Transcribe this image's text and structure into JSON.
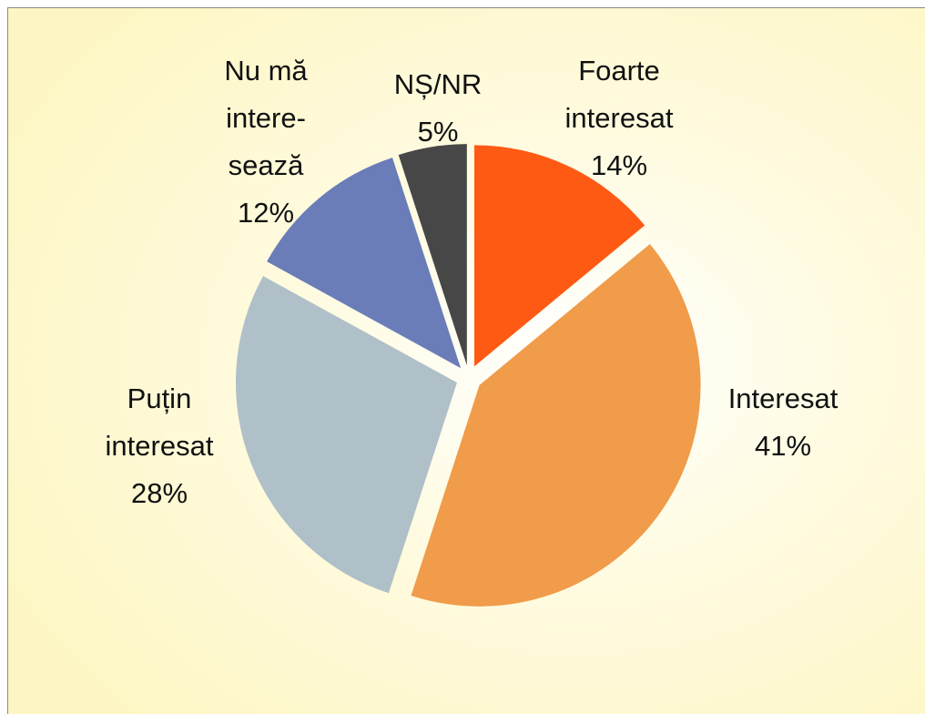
{
  "chart_data": {
    "type": "pie",
    "categories": [
      [
        "Foarte",
        "interesat"
      ],
      [
        "Interesat"
      ],
      [
        "Puțin",
        "interesat"
      ],
      [
        "Nu mă",
        "intere-",
        "sează"
      ],
      [
        "NȘ/NR"
      ]
    ],
    "values": [
      14,
      41,
      28,
      12,
      5
    ],
    "value_labels": [
      "14%",
      "41%",
      "28%",
      "12%",
      "5%"
    ],
    "colors": [
      "#ff5a14",
      "#f09c4a",
      "#b0c0c8",
      "#6a7db8",
      "#474747"
    ]
  }
}
